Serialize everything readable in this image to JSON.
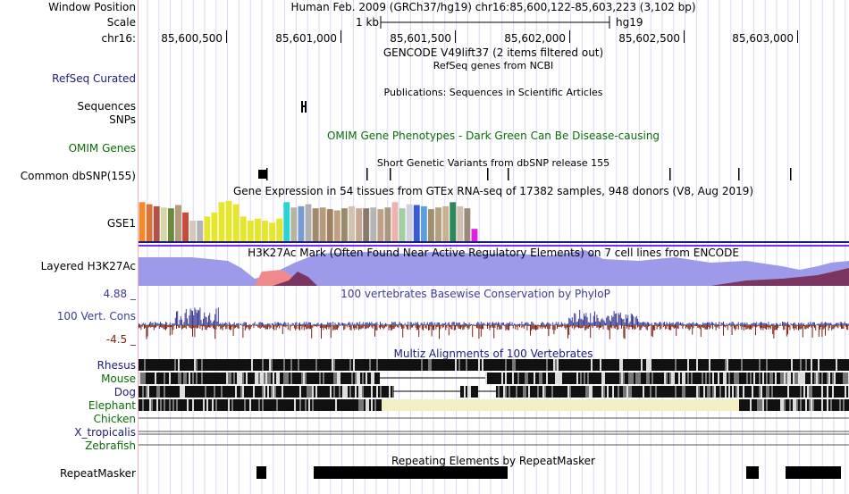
{
  "header": {
    "window_position_label": "Window Position",
    "scale_label": "Scale",
    "chrom_label": "chr16:",
    "assembly_text": "Human Feb. 2009 (GRCh37/hg19)   chr16:85,600,122-85,603,223 (3,102 bp)",
    "scale_text": "1 kb",
    "scale_assembly": "hg19",
    "ticks": [
      "85,600,500",
      "85,601,000",
      "85,601,500",
      "85,602,000",
      "85,602,500",
      "85,603,000"
    ]
  },
  "tracks": {
    "gencode_title": "GENCODE V49lift37 (2 items filtered out)",
    "refseq_subtitle": "RefSeq genes from NCBI",
    "refseq_label": "RefSeq Curated",
    "publications_title": "Publications: Sequences in Scientific Articles",
    "sequences_label": "Sequences",
    "snps_label": "SNPs",
    "omim_label": "OMIM Genes",
    "omim_title": "OMIM Gene Phenotypes - Dark Green Can Be Disease-causing",
    "dbsnp_title": "Short Genetic Variants from dbSNP release 155",
    "dbsnp_label": "Common dbSNP(155)",
    "gtex_title": "Gene Expression in 54 tissues from GTEx RNA-seq of 17382 samples, 948 donors (V8, Aug 2019)",
    "gtex_label": "GSE1",
    "h3k27ac_label": "Layered H3K27Ac",
    "h3k27ac_title": "H3K27Ac Mark (Often Found Near Active Regulatory Elements) on 7 cell lines from ENCODE",
    "phylop_max": "4.88 _",
    "phylop_label": "100 Vert. Cons",
    "phylop_min": "-4.5 _",
    "phylop_title": "100 vertebrates Basewise Conservation by PhyloP",
    "multiz_title": "Multiz Alignments of 100 Vertebrates",
    "species": [
      "Rhesus",
      "Mouse",
      "Dog",
      "Elephant",
      "Chicken",
      "X_tropicalis",
      "Zebrafish"
    ],
    "repeat_title": "Repeating Elements by RepeatMasker",
    "repeat_label": "RepeatMasker"
  },
  "colors": {
    "label_blue": "#1c1c78",
    "label_green": "#0b6a0b",
    "phylop_blue": "#3c3c98",
    "phylop_maroon": "#7a1f12",
    "h3k27ac_lilac": "#9e9aea",
    "h3k27ac_purple": "#7d2ff0",
    "h3k27ac_red": "#f08a8a",
    "h3k27ac_maroon": "#7a3560",
    "elephant_gap": "#f3efc2",
    "grid": "#d9d9f2"
  },
  "gtex_bar_colors": [
    "#f08a2a",
    "#d4763a",
    "#b2504a",
    "#d6d6a6",
    "#6a8a3a",
    "#b29a7a",
    "#c84a3a",
    "#d4c8b8",
    "#b4b4b4",
    "#e6e630",
    "#e6e630",
    "#e6e630",
    "#e6e630",
    "#e6e630",
    "#e6e630",
    "#e6e630",
    "#e6e630",
    "#e6e630",
    "#e6e630",
    "#e6e630",
    "#2ad4d4",
    "#b4b4a0",
    "#7a9ad4",
    "#b0b0b0",
    "#a08a6a",
    "#b89a7a",
    "#a08060",
    "#c0a080",
    "#9a8a6a",
    "#d4c0b0",
    "#c8a890",
    "#887a6a",
    "#b4b4b4",
    "#bfa08a",
    "#a89880",
    "#f0b0b0",
    "#a0d0a0",
    "#d0d0e0",
    "#3a5ad4",
    "#5aa0e0",
    "#a09070",
    "#b4a080",
    "#c8b090",
    "#2a8a5a",
    "#d4c0b0",
    "#9a8a7a",
    "#e020e0"
  ],
  "gtex_bar_values": [
    0.95,
    0.9,
    0.85,
    0.82,
    0.8,
    0.88,
    0.7,
    0.5,
    0.5,
    0.6,
    0.7,
    0.95,
    0.98,
    0.9,
    0.6,
    0.5,
    0.55,
    0.5,
    0.45,
    0.55,
    0.95,
    0.82,
    0.85,
    0.9,
    0.8,
    0.82,
    0.78,
    0.75,
    0.8,
    0.85,
    0.8,
    0.8,
    0.82,
    0.78,
    0.82,
    0.95,
    0.8,
    0.9,
    0.88,
    0.85,
    0.78,
    0.82,
    0.85,
    0.95,
    0.85,
    0.8,
    0.3
  ]
}
